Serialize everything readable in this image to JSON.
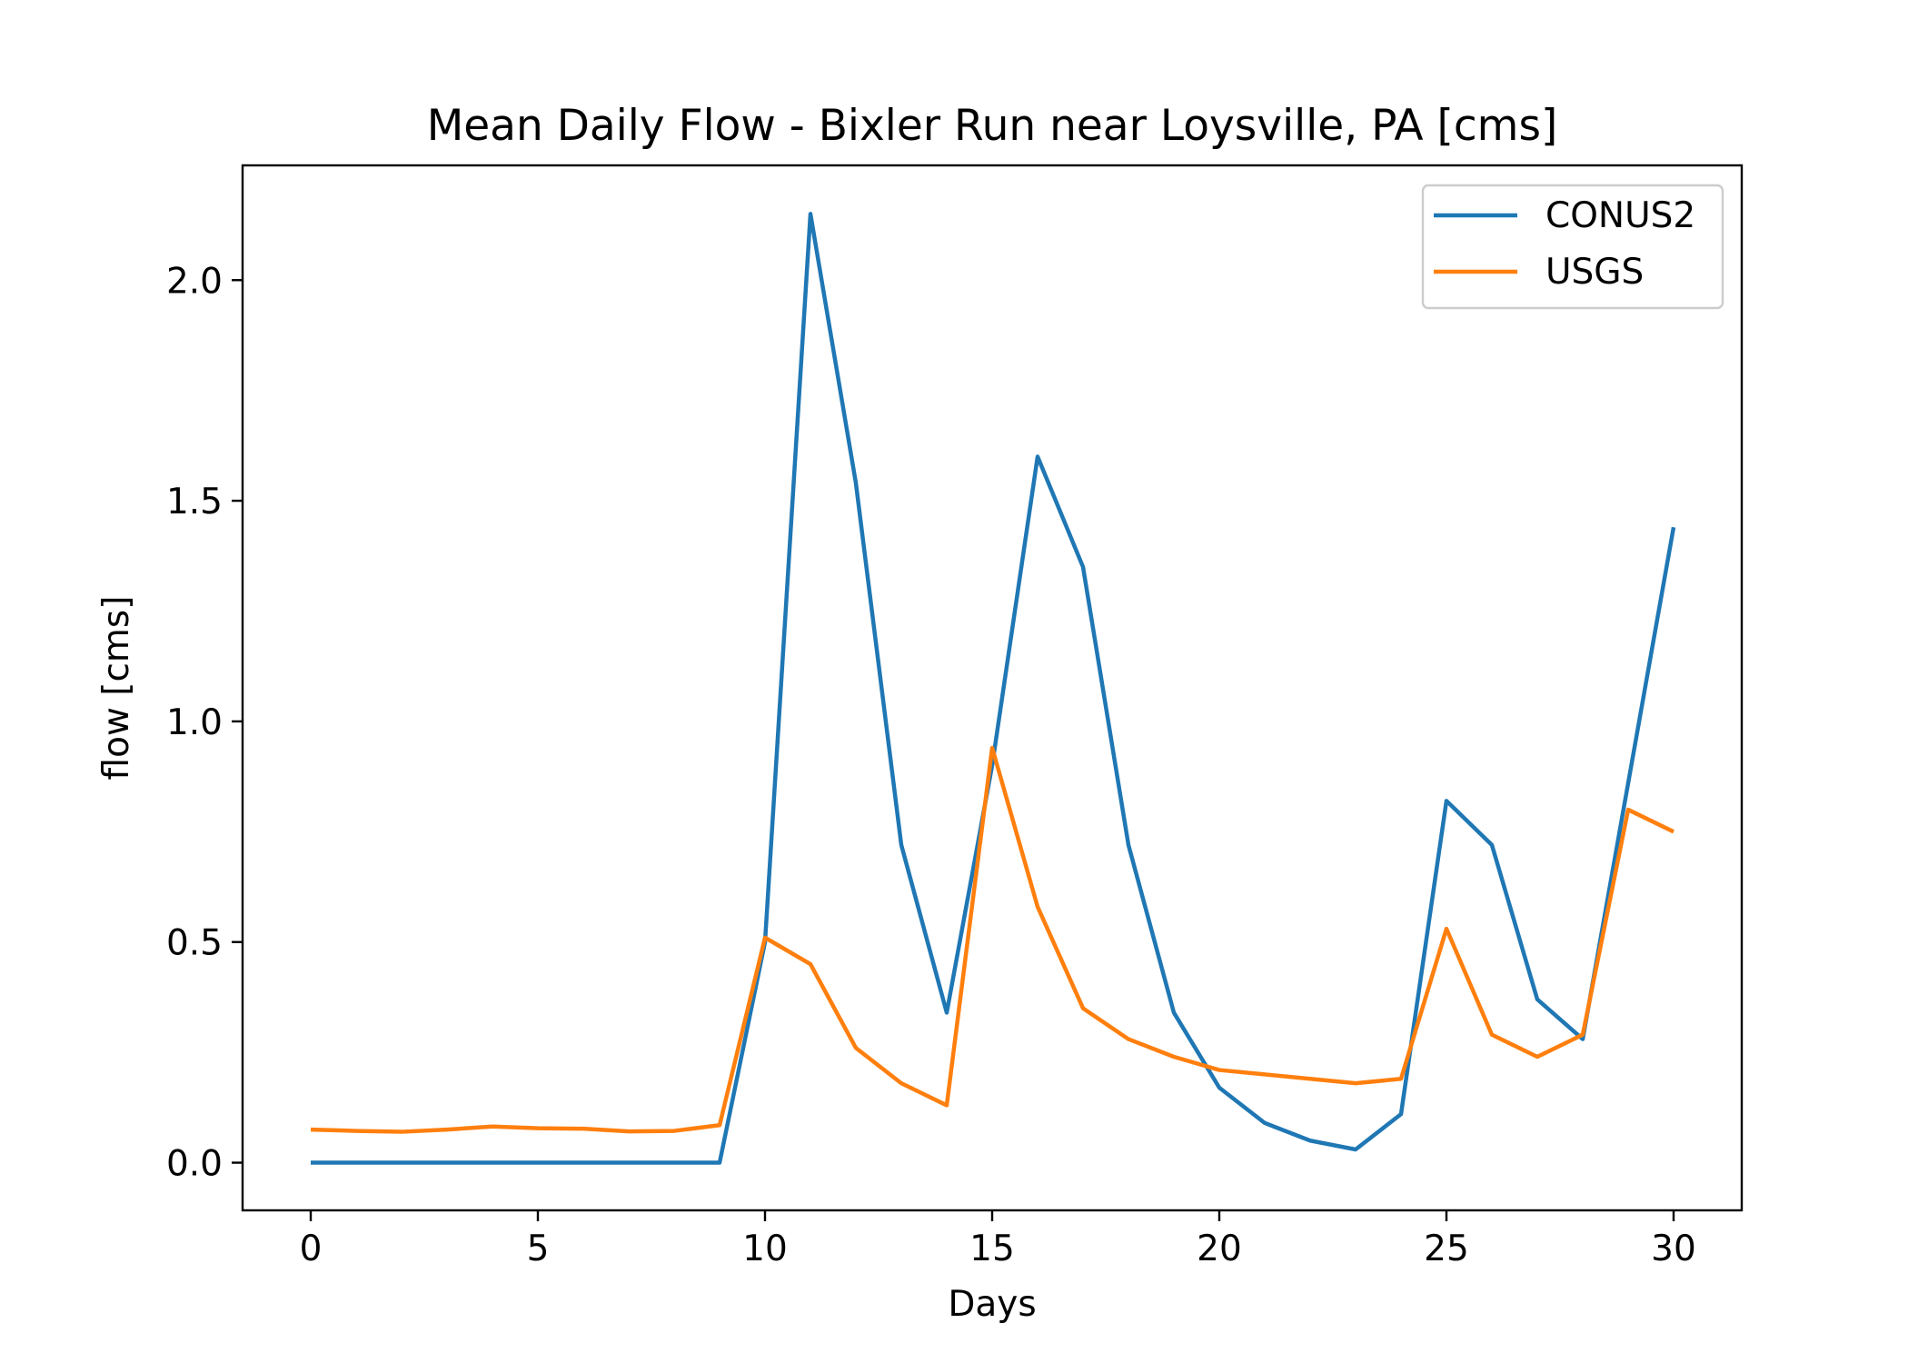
{
  "chart_data": {
    "type": "line",
    "title": "Mean Daily Flow - Bixler Run near Loysville, PA [cms]",
    "xlabel": "Days",
    "ylabel": "flow [cms]",
    "xlim": [
      -1.5,
      31.5
    ],
    "ylim": [
      -0.108,
      2.26
    ],
    "xticks": [
      0,
      5,
      10,
      15,
      20,
      25,
      30
    ],
    "xtick_labels": [
      "0",
      "5",
      "10",
      "15",
      "20",
      "25",
      "30"
    ],
    "yticks": [
      0.0,
      0.5,
      1.0,
      1.5,
      2.0
    ],
    "ytick_labels": [
      "0.0",
      "0.5",
      "1.0",
      "1.5",
      "2.0"
    ],
    "grid": false,
    "legend_position": "upper-right",
    "x": [
      0,
      1,
      2,
      3,
      4,
      5,
      6,
      7,
      8,
      9,
      10,
      11,
      12,
      13,
      14,
      15,
      16,
      17,
      18,
      19,
      20,
      21,
      22,
      23,
      24,
      25,
      26,
      27,
      28,
      29,
      30
    ],
    "series": [
      {
        "name": "CONUS2",
        "color": "#1f77b4",
        "values": [
          0.0,
          0.0,
          0.0,
          0.0,
          0.0,
          0.0,
          0.0,
          0.0,
          0.0,
          0.0,
          0.5,
          2.15,
          1.54,
          0.72,
          0.34,
          0.9,
          1.6,
          1.35,
          0.72,
          0.34,
          0.17,
          0.09,
          0.05,
          0.03,
          0.11,
          0.82,
          0.72,
          0.37,
          0.28,
          0.86,
          1.44
        ]
      },
      {
        "name": "USGS",
        "color": "#ff7f0e",
        "values": [
          0.075,
          0.072,
          0.07,
          0.075,
          0.082,
          0.078,
          0.077,
          0.071,
          0.072,
          0.085,
          0.51,
          0.45,
          0.26,
          0.18,
          0.13,
          0.94,
          0.58,
          0.35,
          0.28,
          0.24,
          0.21,
          0.2,
          0.19,
          0.18,
          0.19,
          0.53,
          0.29,
          0.24,
          0.29,
          0.8,
          0.75
        ]
      }
    ]
  }
}
